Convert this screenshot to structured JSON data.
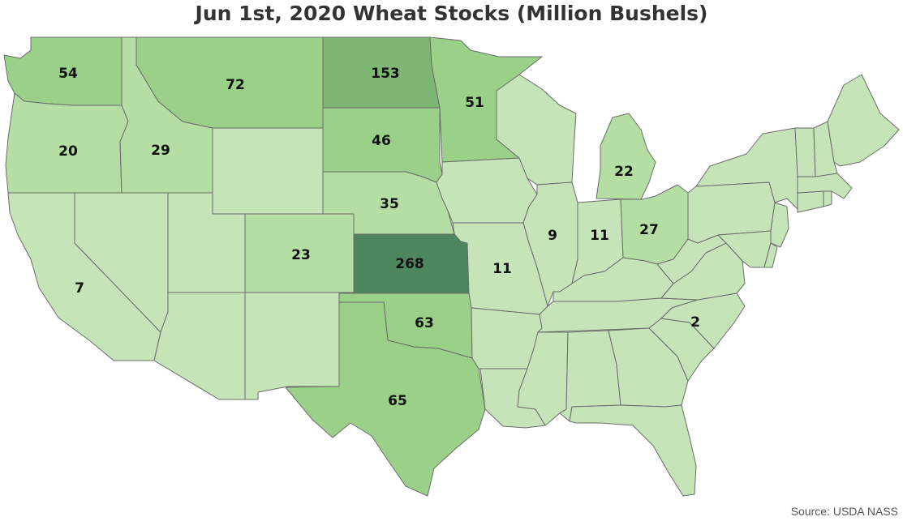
{
  "title": "Jun 1st, 2020 Wheat Stocks (Million Bushels)",
  "source": "Source: USDA NASS",
  "colors": {
    "stroke": "#6b6b6b",
    "base": "#c5e4b8",
    "tier1": "#b4dea3",
    "tier2": "#9bd088",
    "tier3": "#7eb673",
    "tier4": "#4e875e"
  },
  "labels": {
    "WA": "54",
    "MT": "72",
    "ND": "153",
    "MN": "51",
    "OR": "20",
    "ID": "29",
    "SD": "46",
    "MI": "22",
    "NE": "35",
    "CO": "23",
    "KS": "268",
    "MO": "11",
    "IL": "9",
    "IN": "11",
    "OH": "27",
    "CA": "7",
    "OK": "63",
    "NC": "2",
    "TX": "65"
  },
  "values": {
    "WA": 54,
    "MT": 72,
    "ND": 153,
    "MN": 51,
    "OR": 20,
    "ID": 29,
    "SD": 46,
    "MI": 22,
    "NE": 35,
    "CO": 23,
    "KS": 268,
    "MO": 11,
    "IL": 9,
    "IN": 11,
    "OH": 27,
    "CA": 7,
    "OK": 63,
    "NC": 2,
    "TX": 65
  }
}
